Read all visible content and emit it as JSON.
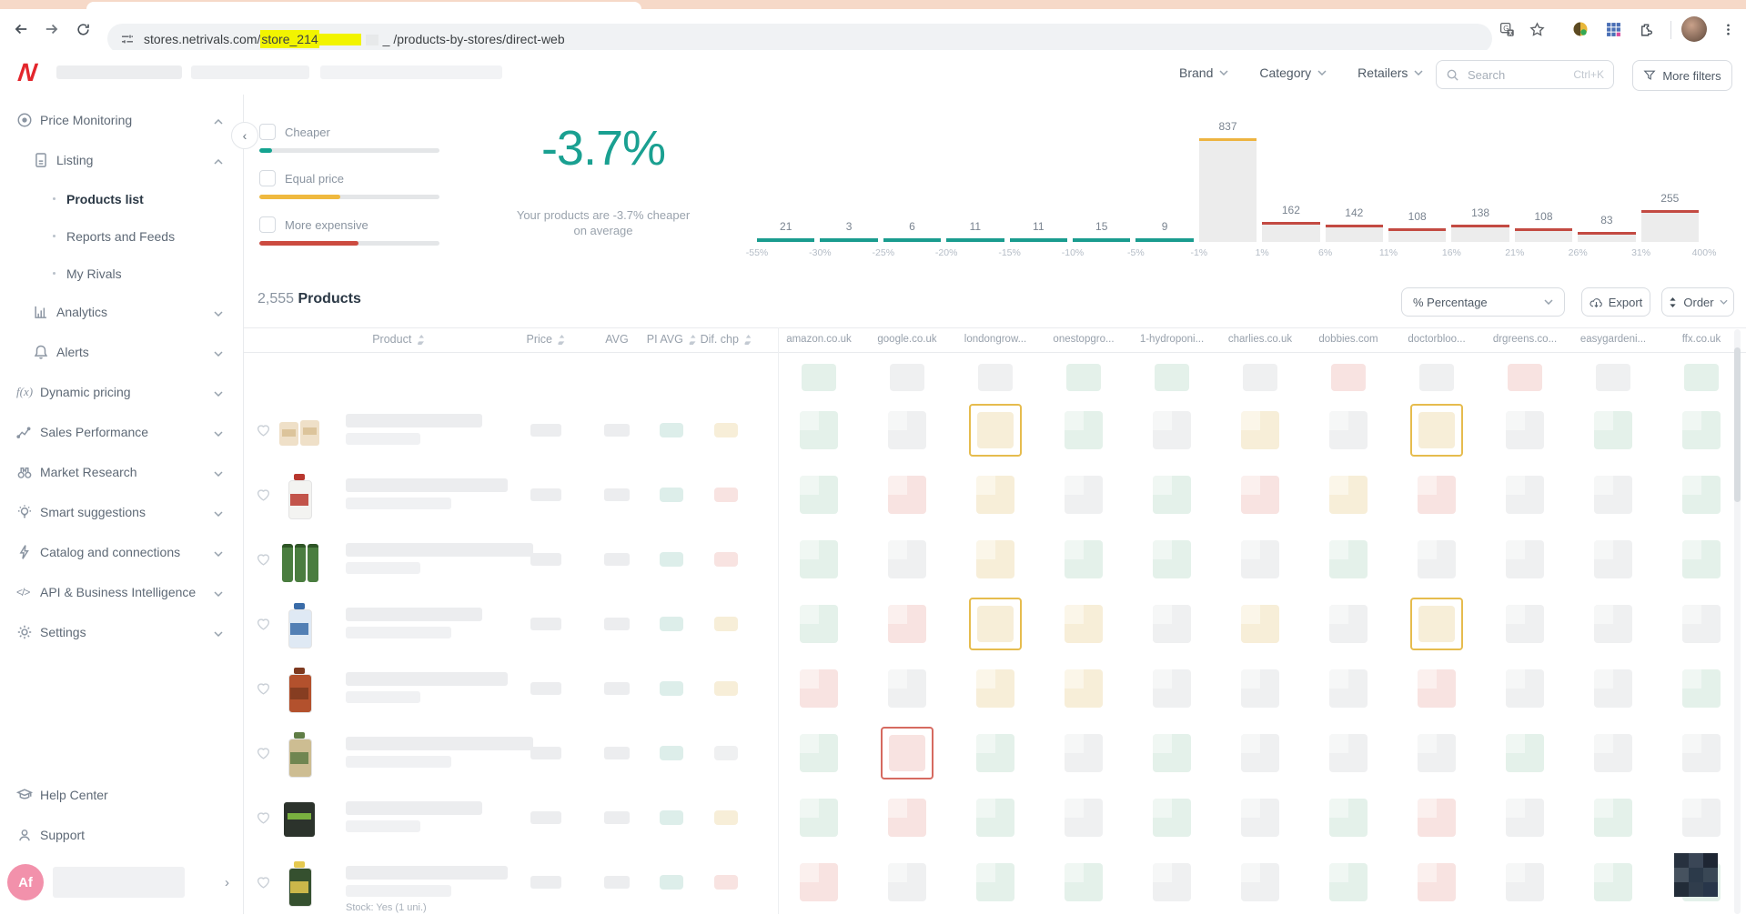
{
  "browser": {
    "url_prefix": "stores.netrivals.com/",
    "url_highlight": "store_214",
    "url_mid": "_",
    "url_suffix": "/products-by-stores/direct-web"
  },
  "header": {
    "logo": "N",
    "filters": [
      "Brand",
      "Category",
      "Retailers"
    ],
    "search_placeholder": "Search",
    "search_shortcut": "Ctrl+K",
    "more_filters": "More filters"
  },
  "sidebar": {
    "items": [
      {
        "label": "Price Monitoring",
        "icon": "target",
        "chevron": "up",
        "level": 0
      },
      {
        "label": "Listing",
        "icon": "doc",
        "chevron": "up",
        "level": 1
      },
      {
        "label": "Products list",
        "level": 2,
        "active": true
      },
      {
        "label": "Reports and Feeds",
        "level": 2
      },
      {
        "label": "My Rivals",
        "level": 2
      },
      {
        "label": "Analytics",
        "icon": "bars",
        "chevron": "down",
        "level": 1
      },
      {
        "label": "Alerts",
        "icon": "bell",
        "chevron": "down",
        "level": 1
      },
      {
        "label": "Dynamic pricing",
        "icon": "fx",
        "chevron": "down",
        "level": 0
      },
      {
        "label": "Sales Performance",
        "icon": "trend",
        "chevron": "down",
        "level": 0
      },
      {
        "label": "Market Research",
        "icon": "binoc",
        "chevron": "down",
        "level": 0
      },
      {
        "label": "Smart suggestions",
        "icon": "bulb",
        "chevron": "down",
        "level": 0
      },
      {
        "label": "Catalog and connections",
        "icon": "bolt",
        "chevron": "down",
        "level": 0
      },
      {
        "label": "API & Business Intelligence",
        "icon": "code",
        "chevron": "down",
        "level": 0
      },
      {
        "label": "Settings",
        "icon": "gear",
        "chevron": "down",
        "level": 0
      }
    ],
    "footer": [
      {
        "label": "Help Center",
        "icon": "cap"
      },
      {
        "label": "Support",
        "icon": "headset"
      }
    ],
    "avatar_initials": "Af"
  },
  "filter_options": [
    {
      "label": "Cheaper",
      "color": "#14a390",
      "fill_pct": 7
    },
    {
      "label": "Equal price",
      "color": "#efb93f",
      "fill_pct": 45
    },
    {
      "label": "More expensive",
      "color": "#cc4b40",
      "fill_pct": 55
    }
  ],
  "summary": {
    "big_value": "-3.7%",
    "caption_line1": "Your products are -3.7% cheaper",
    "caption_line2": "on average"
  },
  "chart_data": {
    "type": "bar",
    "title": "",
    "values": [
      21,
      3,
      6,
      11,
      11,
      15,
      9,
      837,
      162,
      142,
      108,
      138,
      108,
      83,
      255
    ],
    "bin_edges": [
      "-55%",
      "-30%",
      "-25%",
      "-20%",
      "-15%",
      "-10%",
      "-5%",
      "-1%",
      "1%",
      "6%",
      "11%",
      "16%",
      "21%",
      "26%",
      "31%",
      "400%"
    ],
    "segment_colors": {
      "cheaper": "#1a9c8f",
      "equal": "#edb440",
      "expensive": "#c34a42"
    },
    "bar_fill": "#ececec",
    "ylim": [
      0,
      837
    ],
    "grid": false,
    "legend": "none"
  },
  "products": {
    "count": "2,555",
    "count_label": "Products",
    "unit_select": "% Percentage",
    "export_label": "Export",
    "order_label": "Order",
    "columns": [
      {
        "label": "Product",
        "sort": true
      },
      {
        "label": "Price",
        "sort": true
      },
      {
        "label": "AVG",
        "sort": false
      },
      {
        "label": "PI AVG",
        "sort": true
      },
      {
        "label": "Dif. chp",
        "sort": true
      }
    ],
    "retailers": [
      "amazon.co.uk",
      "google.co.uk",
      "londongrow...",
      "onestopgro...",
      "1-hydroponi...",
      "charlies.co.uk",
      "dobbies.com",
      "doctorbloo...",
      "drgreens.co...",
      "easygardeni...",
      "ffx.co.uk"
    ],
    "summary_cells": [
      "g",
      "n",
      "n",
      "g",
      "g",
      "n",
      "r",
      "n",
      "r",
      "n",
      "g"
    ],
    "rows": [
      {
        "cells": [
          "g",
          "n",
          "yb",
          "g",
          "n",
          "y",
          "n",
          "yb",
          "n",
          "g",
          "g"
        ],
        "dif": "y",
        "thumb": {
          "c1": "#efe0c8",
          "c2": "#dcc49b",
          "shape": "boxes"
        }
      },
      {
        "cells": [
          "g",
          "r",
          "y",
          "n",
          "g",
          "r",
          "y",
          "r",
          "n",
          "n",
          "g"
        ],
        "dif": "r",
        "thumb": {
          "c1": "#f3f3f1",
          "c2": "#b8372e",
          "shape": "bottle"
        }
      },
      {
        "cells": [
          "g",
          "n",
          "y",
          "g",
          "g",
          "n",
          "g",
          "n",
          "n",
          "n",
          "g"
        ],
        "dif": "r",
        "thumb": {
          "c1": "#4a7d3f",
          "c2": "#2e5526",
          "shape": "pack"
        }
      },
      {
        "cells": [
          "g",
          "r",
          "yb",
          "y",
          "n",
          "y",
          "n",
          "yb",
          "n",
          "n",
          "n"
        ],
        "dif": "y",
        "thumb": {
          "c1": "#dfe9f4",
          "c2": "#3a6ca8",
          "shape": "bottle"
        }
      },
      {
        "cells": [
          "r",
          "n",
          "y",
          "y",
          "n",
          "n",
          "n",
          "r",
          "n",
          "n",
          "g"
        ],
        "dif": "y",
        "thumb": {
          "c1": "#b3512d",
          "c2": "#7e3a20",
          "shape": "bottle"
        }
      },
      {
        "cells": [
          "g",
          "rb",
          "g",
          "n",
          "g",
          "n",
          "n",
          "n",
          "g",
          "n",
          "n"
        ],
        "dif": "n",
        "thumb": {
          "c1": "#cdbd92",
          "c2": "#5f7d45",
          "shape": "bottle"
        }
      },
      {
        "cells": [
          "g",
          "r",
          "g",
          "n",
          "g",
          "n",
          "g",
          "r",
          "n",
          "g",
          "n"
        ],
        "dif": "y",
        "thumb": {
          "c1": "#2c332c",
          "c2": "#79b03f",
          "shape": "box"
        }
      },
      {
        "cells": [
          "r",
          "n",
          "g",
          "g",
          "n",
          "n",
          "g",
          "r",
          "n",
          "g",
          "g"
        ],
        "dif": "r",
        "thumb": {
          "c1": "#35502f",
          "c2": "#e5c94f",
          "shape": "bottle"
        }
      }
    ],
    "stock_note": "Stock: Yes (1 uni.)"
  },
  "colors": {
    "accent_teal": "#1aa091",
    "amber": "#efb93f",
    "red": "#cc4b40",
    "cell_green": "#e4f1ea",
    "cell_red": "#f8e3e1",
    "cell_yellow": "#f7eed8",
    "cell_neutral": "#eff0f1",
    "cell_teal": "#ddeeea",
    "url_highlight": "#f2f400"
  }
}
